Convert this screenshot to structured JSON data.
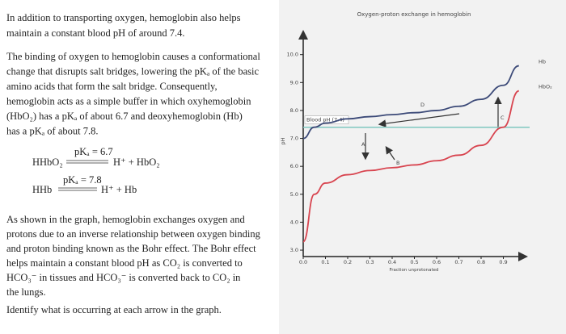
{
  "text": {
    "intro": [
      "In addition to transporting oxygen, hemoglobin also helps",
      "maintain a constant blood pH of around 7.4."
    ],
    "binding": [
      "The binding of oxygen to hemoglobin causes a conformational",
      "change that disrupts salt bridges, lowering the pKₐ of the basic",
      "amino acids that form the salt bridge. Consequently,",
      "hemoglobin acts as a simple buffer in which oxyhemoglobin",
      "(HbO₂) has a pKₐ of about 6.7 and deoxyhemoglobin (Hb)",
      "has a pKₐ of about 7.8."
    ],
    "equations": [
      {
        "left": "HHbO₂",
        "condition": "pKₐ = 6.7",
        "right": "H⁺ + HbO₂"
      },
      {
        "left": "HHb",
        "condition": "pKₐ = 7.8",
        "right": "H⁺ + Hb"
      }
    ],
    "bohr": [
      "As shown in the graph, hemoglobin exchanges oxygen and",
      "protons due to an inverse relationship between oxygen binding",
      "and proton binding known as the Bohr effect. The Bohr effect",
      "helps maintain a constant blood pH as CO₂ is converted to",
      "HCO₃⁻ in tissues and HCO₃⁻ is converted back to CO₂ in",
      "the lungs."
    ],
    "question": "Identify what is occurring at each arrow in the graph."
  },
  "chart_data": {
    "type": "line",
    "title": "Oxygen-proton exchange in hemoglobin",
    "x_label": "Fraction unprotonated",
    "y_label": "pH",
    "xlim": [
      0,
      1.0
    ],
    "ylim": [
      2.77,
      10.8
    ],
    "xticks": [
      {
        "value": 0,
        "label": "0.0"
      },
      0.1,
      0.2,
      0.3,
      0.4,
      0.5,
      0.6,
      0.7,
      0.8,
      0.9
    ],
    "yticks": [
      {
        "value": 3,
        "label": "3.0"
      },
      {
        "value": 4,
        "label": "4.0"
      },
      {
        "value": 5,
        "label": "5.0"
      },
      {
        "value": 6,
        "label": "6.0"
      },
      {
        "value": 7,
        "label": "7.0"
      },
      {
        "value": 8,
        "label": "8.0"
      },
      {
        "value": 9,
        "label": "9.0"
      },
      {
        "value": 10,
        "label": "10.0"
      }
    ],
    "reference_line": {
      "label": "Blood pH (7.4)",
      "value": 7.4,
      "color": "#7fc8c0"
    },
    "arrow_labels": [
      "A",
      "B",
      "C",
      "D"
    ],
    "series": [
      {
        "name": "Hb",
        "color": "#3c4a78",
        "x": [
          0,
          0.05,
          0.1,
          0.2,
          0.3,
          0.4,
          0.5,
          0.6,
          0.7,
          0.8,
          0.9,
          0.97
        ],
        "values": [
          7.0,
          7.4,
          7.55,
          7.7,
          7.78,
          7.85,
          7.92,
          8.0,
          8.15,
          8.4,
          8.9,
          9.6
        ]
      },
      {
        "name": "HbO₂",
        "color": "#d8444f",
        "x": [
          0,
          0.05,
          0.1,
          0.2,
          0.3,
          0.4,
          0.5,
          0.6,
          0.7,
          0.8,
          0.9,
          0.97
        ],
        "values": [
          3.3,
          5.0,
          5.4,
          5.7,
          5.85,
          5.95,
          6.05,
          6.2,
          6.4,
          6.75,
          7.4,
          8.7
        ]
      }
    ]
  }
}
